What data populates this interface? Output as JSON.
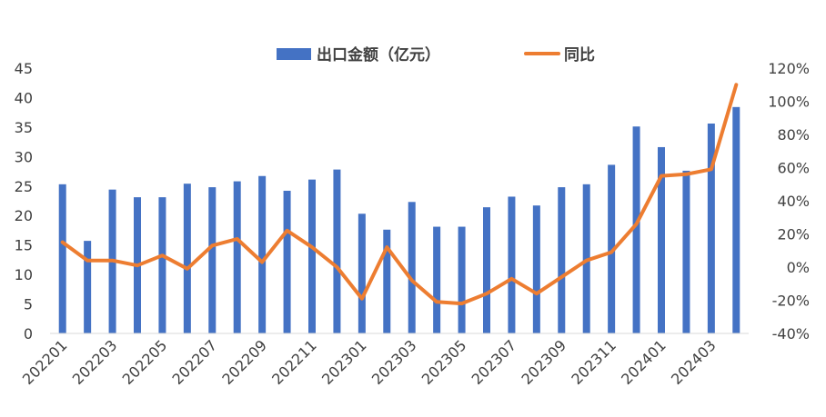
{
  "chart_data": {
    "type": "bar",
    "legend": {
      "placement": "top-center",
      "bar_label": "出口金额（亿元）",
      "line_label": "同比"
    },
    "colors": {
      "bar": "#4472C4",
      "line": "#ED7D31",
      "axis": "#D9D9D9",
      "text": "#404040"
    },
    "grid": false,
    "categories": [
      "202201",
      "202202",
      "202203",
      "202204",
      "202205",
      "202206",
      "202207",
      "202208",
      "202209",
      "202210",
      "202211",
      "202212",
      "202301",
      "202302",
      "202303",
      "202304",
      "202305",
      "202306",
      "202307",
      "202308",
      "202309",
      "202310",
      "202311",
      "202312",
      "202401",
      "202402",
      "202403",
      "202404"
    ],
    "x_tick_labels": [
      "202201",
      "202203",
      "202205",
      "202207",
      "202209",
      "202211",
      "202301",
      "202303",
      "202305",
      "202307",
      "202309",
      "202311",
      "202401",
      "202403"
    ],
    "series": [
      {
        "name": "出口金额（亿元）",
        "type": "bar",
        "axis": "left",
        "values": [
          25.3,
          15.7,
          24.4,
          23.1,
          23.1,
          25.4,
          24.8,
          25.8,
          26.7,
          24.2,
          26.1,
          27.8,
          20.3,
          17.6,
          22.3,
          18.1,
          18.1,
          21.4,
          23.2,
          21.7,
          24.8,
          25.3,
          28.6,
          35.1,
          31.6,
          27.6,
          35.6,
          38.4
        ]
      },
      {
        "name": "同比",
        "type": "line",
        "axis": "right",
        "values": [
          15,
          4,
          4,
          1,
          7,
          -1,
          13,
          17,
          3,
          22,
          12,
          0,
          -19,
          12,
          -8,
          -21,
          -22,
          -16,
          -7,
          -16,
          -6,
          4,
          9,
          26,
          55,
          56,
          59,
          110
        ]
      }
    ],
    "y_left": {
      "min": 0,
      "max": 45,
      "ticks": [
        "0",
        "5",
        "10",
        "15",
        "20",
        "25",
        "30",
        "35",
        "40",
        "45"
      ]
    },
    "y_right": {
      "min": -40,
      "max": 120,
      "ticks": [
        "-40%",
        "-20%",
        "0%",
        "20%",
        "40%",
        "60%",
        "80%",
        "100%",
        "120%"
      ]
    }
  }
}
